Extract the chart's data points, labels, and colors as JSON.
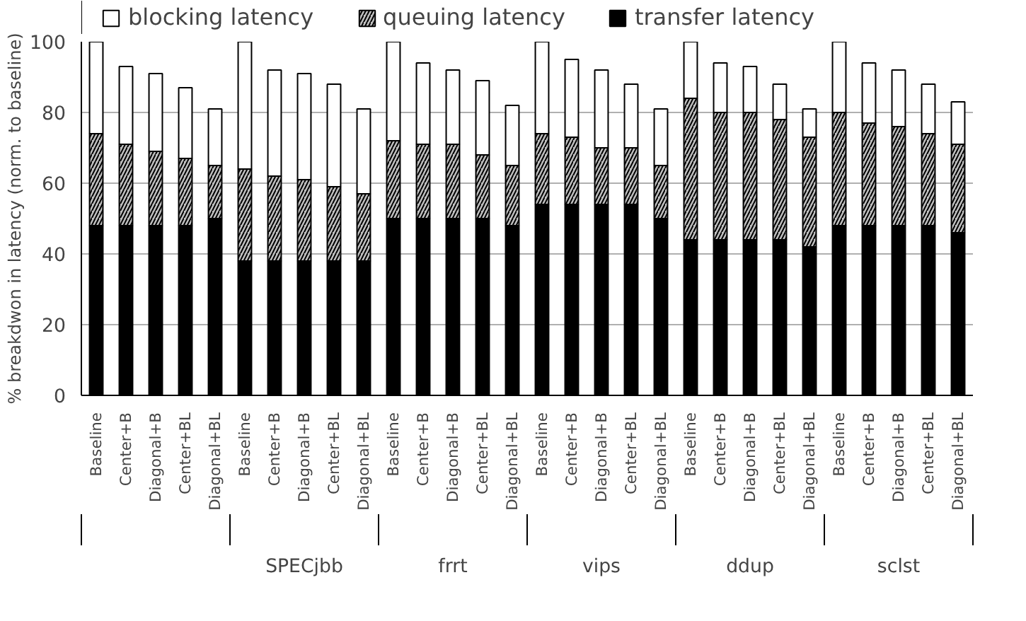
{
  "chart_data": {
    "type": "bar",
    "stacked": true,
    "ylabel": "% breakdwon in latency (norm. to baseline)",
    "categories": [
      "Baseline",
      "Center+B",
      "Diagonal+B",
      "Center+BL",
      "Diagonal+BL",
      "Baseline",
      "Center+B",
      "Diagonal+B",
      "Center+BL",
      "Diagonal+BL",
      "Baseline",
      "Center+B",
      "Diagonal+B",
      "Center+BL",
      "Diagonal+BL",
      "Baseline",
      "Center+B",
      "Diagonal+B",
      "Center+BL",
      "Diagonal+BL",
      "Baseline",
      "Center+B",
      "Diagonal+B",
      "Center+BL",
      "Diagonal+BL",
      "Baseline",
      "Center+B",
      "Diagonal+B",
      "Center+BL",
      "Diagonal+BL"
    ],
    "series": [
      {
        "name": "transfer latency",
        "color": "#000000",
        "values": [
          48,
          48,
          48,
          48,
          50,
          38,
          38,
          38,
          38,
          38,
          50,
          50,
          50,
          50,
          48,
          54,
          54,
          54,
          54,
          50,
          44,
          44,
          44,
          44,
          42,
          48,
          48,
          48,
          48,
          46
        ]
      },
      {
        "name": "queuing latency",
        "color": "#bfbfbf",
        "values": [
          26,
          23,
          21,
          19,
          15,
          26,
          24,
          23,
          21,
          19,
          22,
          21,
          21,
          18,
          17,
          20,
          19,
          16,
          16,
          15,
          40,
          36,
          36,
          34,
          31,
          32,
          29,
          28,
          26,
          25
        ]
      },
      {
        "name": "blocking latency",
        "color": "#ffffff",
        "values": [
          26,
          22,
          22,
          20,
          16,
          36,
          30,
          30,
          29,
          24,
          28,
          23,
          21,
          21,
          17,
          26,
          22,
          22,
          18,
          16,
          16,
          14,
          13,
          10,
          8,
          20,
          17,
          16,
          14,
          12
        ]
      }
    ],
    "ylim": [
      0,
      100
    ],
    "yticks": [
      0,
      20,
      40,
      60,
      80,
      100
    ],
    "grid": "y",
    "legend": "top",
    "annotations": [
      "SPECjbb",
      "frrt",
      "vips",
      "ddup",
      "sclst"
    ]
  }
}
